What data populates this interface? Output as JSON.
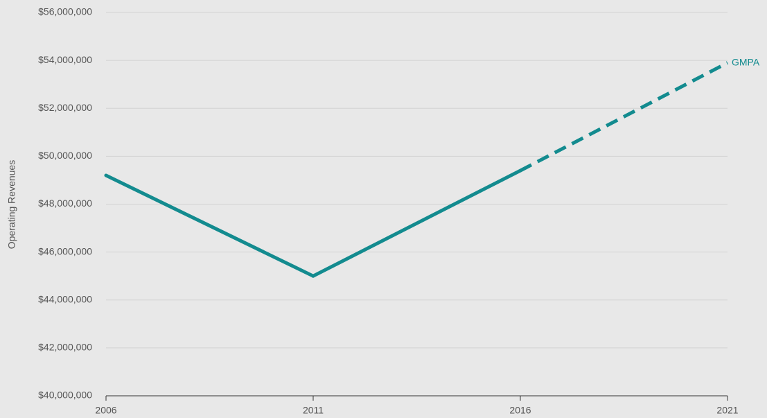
{
  "chart_data": {
    "type": "line",
    "y_label": "Operating Revenues",
    "x": [
      2006,
      2011,
      2016,
      2021
    ],
    "xlim": [
      2006,
      2021
    ],
    "xticks": [
      2006,
      2011,
      2016,
      2021
    ],
    "series": [
      {
        "name": "GMPA",
        "color": "#138b8f",
        "values": [
          49200000,
          45000000,
          49400000,
          53900000
        ],
        "segment_styles": [
          "solid",
          "solid",
          "dashed"
        ]
      }
    ],
    "ylim": [
      40000000,
      56000000
    ],
    "yticks": [
      {
        "value": 40000000,
        "label": "$40,000,000"
      },
      {
        "value": 42000000,
        "label": "$42,000,000"
      },
      {
        "value": 44000000,
        "label": "$44,000,000"
      },
      {
        "value": 46000000,
        "label": "$46,000,000"
      },
      {
        "value": 48000000,
        "label": "$48,000,000"
      },
      {
        "value": 50000000,
        "label": "$50,000,000"
      },
      {
        "value": 52000000,
        "label": "$52,000,000"
      },
      {
        "value": 54000000,
        "label": "$54,000,000"
      },
      {
        "value": 56000000,
        "label": "$56,000,000"
      }
    ],
    "grid": true
  }
}
